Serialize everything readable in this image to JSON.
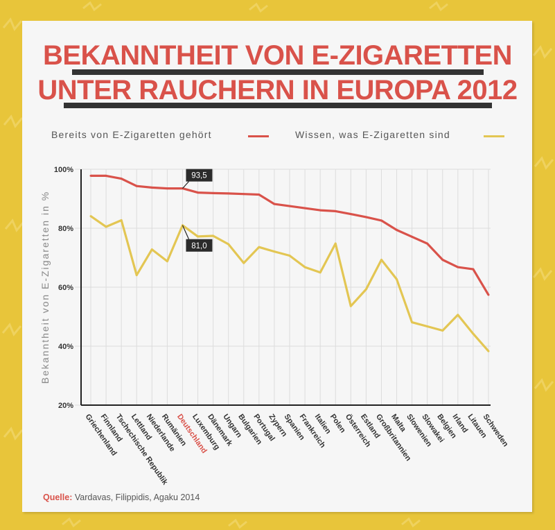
{
  "title": {
    "line1": "BEKANNTHEIT VON E-ZIGARETTEN",
    "line2": "UNTER RAUCHERN IN EUROPA 2012"
  },
  "legend": {
    "series1": "Bereits von E-Zigaretten gehört",
    "series2": "Wissen, was E-Zigaretten sind"
  },
  "source": {
    "label": "Quelle:",
    "text": "Vardavas, Filippidis, Agaku 2014"
  },
  "colors": {
    "background": "#e8c53a",
    "series1": "#d9524a",
    "series2": "#e3c653",
    "title": "#d9524a",
    "highlight": "#d9524a"
  },
  "chart_data": {
    "type": "line",
    "ylabel": "Bekanntheit von E-Zigaretten in %",
    "ylim": [
      20,
      100
    ],
    "yticks": [
      20,
      40,
      60,
      80,
      100
    ],
    "ytick_labels": [
      "20%",
      "40%",
      "60%",
      "80%",
      "100%"
    ],
    "grid": true,
    "legend_position": "top",
    "highlight_category": "Deutschland",
    "categories": [
      "Griechenland",
      "Finnland",
      "Tschechische Republik",
      "Lettland",
      "Niederlande",
      "Rumänien",
      "Deutschland",
      "Luxemburg",
      "Dänemark",
      "Ungarn",
      "Bulgarien",
      "Portugal",
      "Zypern",
      "Spanien",
      "Frankreich",
      "Italien",
      "Polen",
      "Österreich",
      "Estland",
      "Großbritannien",
      "Malta",
      "Slowenien",
      "Slowakei",
      "Belgien",
      "Irland",
      "Litauen",
      "Schweden"
    ],
    "series": [
      {
        "name": "Bereits von E-Zigaretten gehört",
        "values": [
          97.8,
          97.8,
          96.8,
          94.3,
          93.8,
          93.5,
          93.5,
          92.1,
          91.9,
          91.8,
          91.6,
          91.4,
          88.2,
          87.5,
          86.8,
          86.1,
          85.8,
          84.8,
          83.8,
          82.6,
          79.4,
          77.1,
          74.8,
          69.3,
          66.8,
          66.1,
          57.4
        ]
      },
      {
        "name": "Wissen, was E-Zigaretten sind",
        "values": [
          84.1,
          80.5,
          82.7,
          64.1,
          72.8,
          68.8,
          81.0,
          77.2,
          77.4,
          74.6,
          68.2,
          73.6,
          72.1,
          70.7,
          66.8,
          65.0,
          74.8,
          53.6,
          59.3,
          69.3,
          62.7,
          48.1,
          46.7,
          45.3,
          50.6,
          44.2,
          38.3
        ]
      }
    ],
    "annotations": [
      {
        "category": "Deutschland",
        "series": 0,
        "label": "93,5"
      },
      {
        "category": "Deutschland",
        "series": 1,
        "label": "81,0"
      }
    ]
  }
}
